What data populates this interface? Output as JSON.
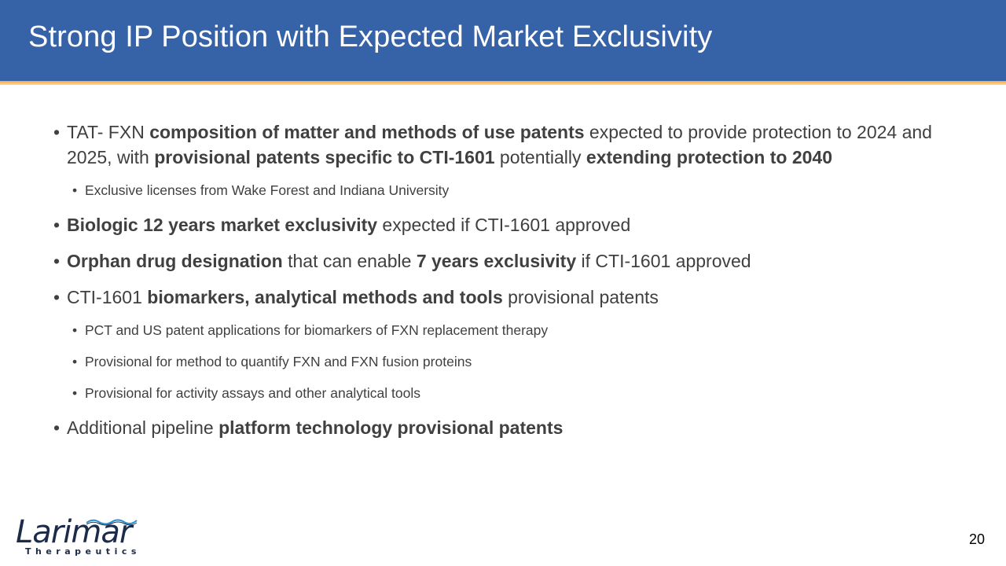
{
  "title": "Strong IP Position with Expected Market Exclusivity",
  "bullets": {
    "b1": {
      "p1": "TAT- FXN ",
      "p2": "composition of matter and methods of use patents",
      "p3": " expected to provide protection to 2024 and 2025, with ",
      "p4": "provisional patents specific to CTI-1601",
      "p5": " potentially ",
      "p6": "extending protection to 2040"
    },
    "b1_sub": "Exclusive licenses from Wake Forest and Indiana University",
    "b2": {
      "p1": "Biologic 12 years market exclusivity",
      "p2": " expected if CTI-1601 approved"
    },
    "b3": {
      "p1": "Orphan drug designation",
      "p2": " that can enable ",
      "p3": "7 years exclusivity",
      "p4": " if CTI-1601 approved"
    },
    "b4": {
      "p1": "CTI-1601 ",
      "p2": "biomarkers, analytical methods and tools",
      "p3": " provisional patents"
    },
    "b4_subs": [
      "PCT and US patent applications for biomarkers of FXN replacement therapy",
      "Provisional for method to quantify FXN and FXN fusion proteins",
      "Provisional for activity assays and other analytical tools"
    ],
    "b5": {
      "p1": "Additional pipeline ",
      "p2": "platform technology provisional patents"
    }
  },
  "bullet_glyph": "•",
  "logo": {
    "name": "Larimar",
    "sub": "Therapeutics"
  },
  "page_number": "20",
  "colors": {
    "title_bar": "#3662a8",
    "accent": "#f2a93b",
    "text": "#404040"
  }
}
